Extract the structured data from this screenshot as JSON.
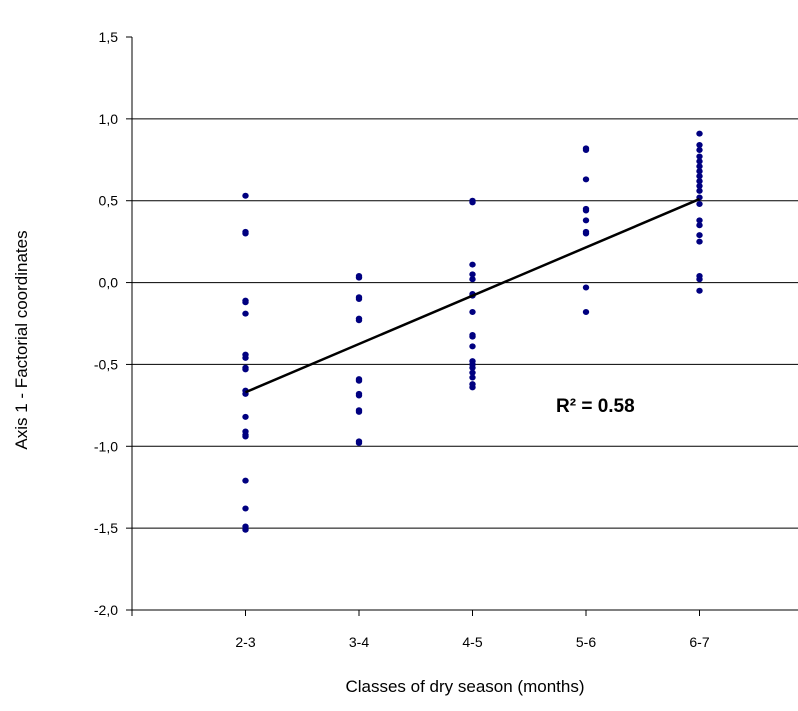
{
  "chart_data": {
    "type": "scatter",
    "title": "",
    "xlabel": "Classes of dry season (months)",
    "ylabel": "Axis 1 - Factorial coordinates",
    "categories": [
      "2-3",
      "3-4",
      "4-5",
      "5-6",
      "6-7"
    ],
    "x_range": [
      0,
      6
    ],
    "ylim": [
      -2.0,
      1.5
    ],
    "y_ticks": [
      -2.0,
      -1.5,
      -1.0,
      -0.5,
      0.0,
      0.5,
      1.0,
      1.5
    ],
    "y_tick_labels": [
      "-2,0",
      "-1,5",
      "-1,0",
      "-0,5",
      "0,0",
      "0,5",
      "1,0",
      "1,5"
    ],
    "grid": "horizontal",
    "marker_color": "#000080",
    "series": [
      {
        "points": [
          {
            "x": 1,
            "y": 0.53
          },
          {
            "x": 1,
            "y": 0.31
          },
          {
            "x": 1,
            "y": 0.3
          },
          {
            "x": 1,
            "y": -0.11
          },
          {
            "x": 1,
            "y": -0.12
          },
          {
            "x": 1,
            "y": -0.19
          },
          {
            "x": 1,
            "y": -0.44
          },
          {
            "x": 1,
            "y": -0.46
          },
          {
            "x": 1,
            "y": -0.52
          },
          {
            "x": 1,
            "y": -0.53
          },
          {
            "x": 1,
            "y": -0.66
          },
          {
            "x": 1,
            "y": -0.68
          },
          {
            "x": 1,
            "y": -0.82
          },
          {
            "x": 1,
            "y": -0.91
          },
          {
            "x": 1,
            "y": -0.93
          },
          {
            "x": 1,
            "y": -0.94
          },
          {
            "x": 1,
            "y": -1.21
          },
          {
            "x": 1,
            "y": -1.38
          },
          {
            "x": 1,
            "y": -1.49
          },
          {
            "x": 1,
            "y": -1.51
          },
          {
            "x": 2,
            "y": 0.04
          },
          {
            "x": 2,
            "y": 0.03
          },
          {
            "x": 2,
            "y": -0.09
          },
          {
            "x": 2,
            "y": -0.1
          },
          {
            "x": 2,
            "y": -0.22
          },
          {
            "x": 2,
            "y": -0.23
          },
          {
            "x": 2,
            "y": -0.59
          },
          {
            "x": 2,
            "y": -0.6
          },
          {
            "x": 2,
            "y": -0.68
          },
          {
            "x": 2,
            "y": -0.69
          },
          {
            "x": 2,
            "y": -0.78
          },
          {
            "x": 2,
            "y": -0.79
          },
          {
            "x": 2,
            "y": -0.97
          },
          {
            "x": 2,
            "y": -0.98
          },
          {
            "x": 3,
            "y": 0.5
          },
          {
            "x": 3,
            "y": 0.49
          },
          {
            "x": 3,
            "y": 0.11
          },
          {
            "x": 3,
            "y": 0.05
          },
          {
            "x": 3,
            "y": 0.02
          },
          {
            "x": 3,
            "y": -0.07
          },
          {
            "x": 3,
            "y": -0.08
          },
          {
            "x": 3,
            "y": -0.18
          },
          {
            "x": 3,
            "y": -0.32
          },
          {
            "x": 3,
            "y": -0.33
          },
          {
            "x": 3,
            "y": -0.39
          },
          {
            "x": 3,
            "y": -0.48
          },
          {
            "x": 3,
            "y": -0.5
          },
          {
            "x": 3,
            "y": -0.52
          },
          {
            "x": 3,
            "y": -0.55
          },
          {
            "x": 3,
            "y": -0.58
          },
          {
            "x": 3,
            "y": -0.62
          },
          {
            "x": 3,
            "y": -0.64
          },
          {
            "x": 4,
            "y": 0.82
          },
          {
            "x": 4,
            "y": 0.81
          },
          {
            "x": 4,
            "y": 0.63
          },
          {
            "x": 4,
            "y": 0.45
          },
          {
            "x": 4,
            "y": 0.44
          },
          {
            "x": 4,
            "y": 0.38
          },
          {
            "x": 4,
            "y": 0.31
          },
          {
            "x": 4,
            "y": 0.3
          },
          {
            "x": 4,
            "y": -0.03
          },
          {
            "x": 4,
            "y": -0.18
          },
          {
            "x": 5,
            "y": 0.91
          },
          {
            "x": 5,
            "y": 0.84
          },
          {
            "x": 5,
            "y": 0.81
          },
          {
            "x": 5,
            "y": 0.77
          },
          {
            "x": 5,
            "y": 0.74
          },
          {
            "x": 5,
            "y": 0.71
          },
          {
            "x": 5,
            "y": 0.68
          },
          {
            "x": 5,
            "y": 0.65
          },
          {
            "x": 5,
            "y": 0.62
          },
          {
            "x": 5,
            "y": 0.59
          },
          {
            "x": 5,
            "y": 0.56
          },
          {
            "x": 5,
            "y": 0.52
          },
          {
            "x": 5,
            "y": 0.48
          },
          {
            "x": 5,
            "y": 0.38
          },
          {
            "x": 5,
            "y": 0.35
          },
          {
            "x": 5,
            "y": 0.29
          },
          {
            "x": 5,
            "y": 0.25
          },
          {
            "x": 5,
            "y": 0.04
          },
          {
            "x": 5,
            "y": 0.02
          },
          {
            "x": 5,
            "y": -0.05
          }
        ]
      }
    ],
    "trendline": {
      "x": [
        1,
        5
      ],
      "y": [
        -0.67,
        0.51
      ],
      "color": "#000000"
    },
    "annotation": "R² = 0.58"
  }
}
